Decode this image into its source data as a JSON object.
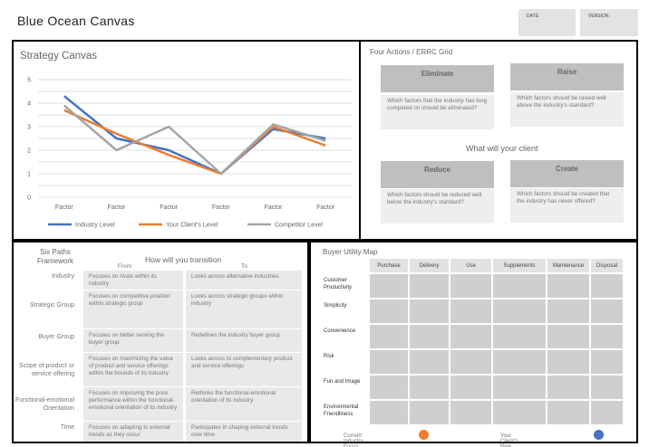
{
  "header": {
    "title": "Blue Ocean Canvas",
    "date_label": "DATE:",
    "version_label": "VERSION:"
  },
  "strategy": {
    "title": "Strategy Canvas",
    "chart_data": {
      "type": "line",
      "categories": [
        "Factor",
        "Factor",
        "Factor",
        "Factor",
        "Factor",
        "Factor"
      ],
      "ylim": [
        0,
        5
      ],
      "yticks": [
        "0",
        "0.5",
        "1",
        "1.5",
        "2",
        "2.5",
        "3",
        "3.5",
        "4",
        "4.5",
        "5"
      ],
      "grid": true,
      "legend_position": "bottom",
      "series": [
        {
          "name": "Industry Level",
          "color": "#4472c4",
          "values": [
            4.3,
            2.5,
            2.0,
            1.0,
            2.9,
            2.5
          ]
        },
        {
          "name": "Your Client's Level",
          "color": "#ed7d31",
          "values": [
            3.7,
            2.7,
            1.8,
            1.0,
            3.0,
            2.2
          ]
        },
        {
          "name": "Competitor Level",
          "color": "#a5a5a5",
          "values": [
            3.9,
            2.0,
            3.0,
            1.0,
            3.1,
            2.4
          ]
        }
      ]
    }
  },
  "errc": {
    "title": "Four Actions / ERRC Grid",
    "middle_label": "What will your client",
    "eliminate": {
      "label": "Eliminate",
      "text": "Which factors that the industry has long competed on should be eliminated?"
    },
    "raise": {
      "label": "Raise",
      "text": "Which factors should be raised well above the industry's standard?"
    },
    "reduce": {
      "label": "Reduce",
      "text": "Which factors should be reduced well below the industry's standard?"
    },
    "create": {
      "label": "Create",
      "text": "Which factors should be created that the industry has never offered?"
    }
  },
  "six_paths": {
    "title": "Six Paths Framework",
    "transition_title": "How will you transition",
    "from_label": "From",
    "to_label": "To",
    "rows": [
      {
        "label": "Industry",
        "from": "Focuses on rivals within its industry",
        "to": "Looks across alternative industries"
      },
      {
        "label": "Strategic Group",
        "from": "Focuses on competitive position within strategic group",
        "to": "Looks across strategic groups within industry"
      },
      {
        "label": "Buyer Group",
        "from": "Focuses on better serving the buyer group",
        "to": "Redefines the industry buyer group"
      },
      {
        "label": "Scope of product or service offering",
        "from": "Focuses on maximizing the value of product and service offerings within the bounds of its industry",
        "to": "Looks across to complementary product and service offerings"
      },
      {
        "label": "Functional-emotional Orientation",
        "from": "Focuses on improving the price performance within the functional-emotional orientation of its industry",
        "to": "Rethinks the functional-emotional orientation of its industry"
      },
      {
        "label": "Time",
        "from": "Focuses on adapting to external trends as they occur",
        "to": "Participates in shaping external trends over time"
      }
    ]
  },
  "buyer_utility": {
    "title": "Buyer Utility Map",
    "columns": [
      "Purchase",
      "Delivery",
      "Use",
      "Supplements",
      "Maintenance",
      "Disposal"
    ],
    "rows": [
      "Customer Productivity",
      "Simplicity",
      "Convenience",
      "Risk",
      "Fun and Image",
      "Environmental Friendliness"
    ],
    "legend": [
      {
        "label": "Current Industry Focus",
        "color": "#ed7d31"
      },
      {
        "label": "Your Client's New Offering",
        "color": "#4472c4"
      }
    ]
  }
}
